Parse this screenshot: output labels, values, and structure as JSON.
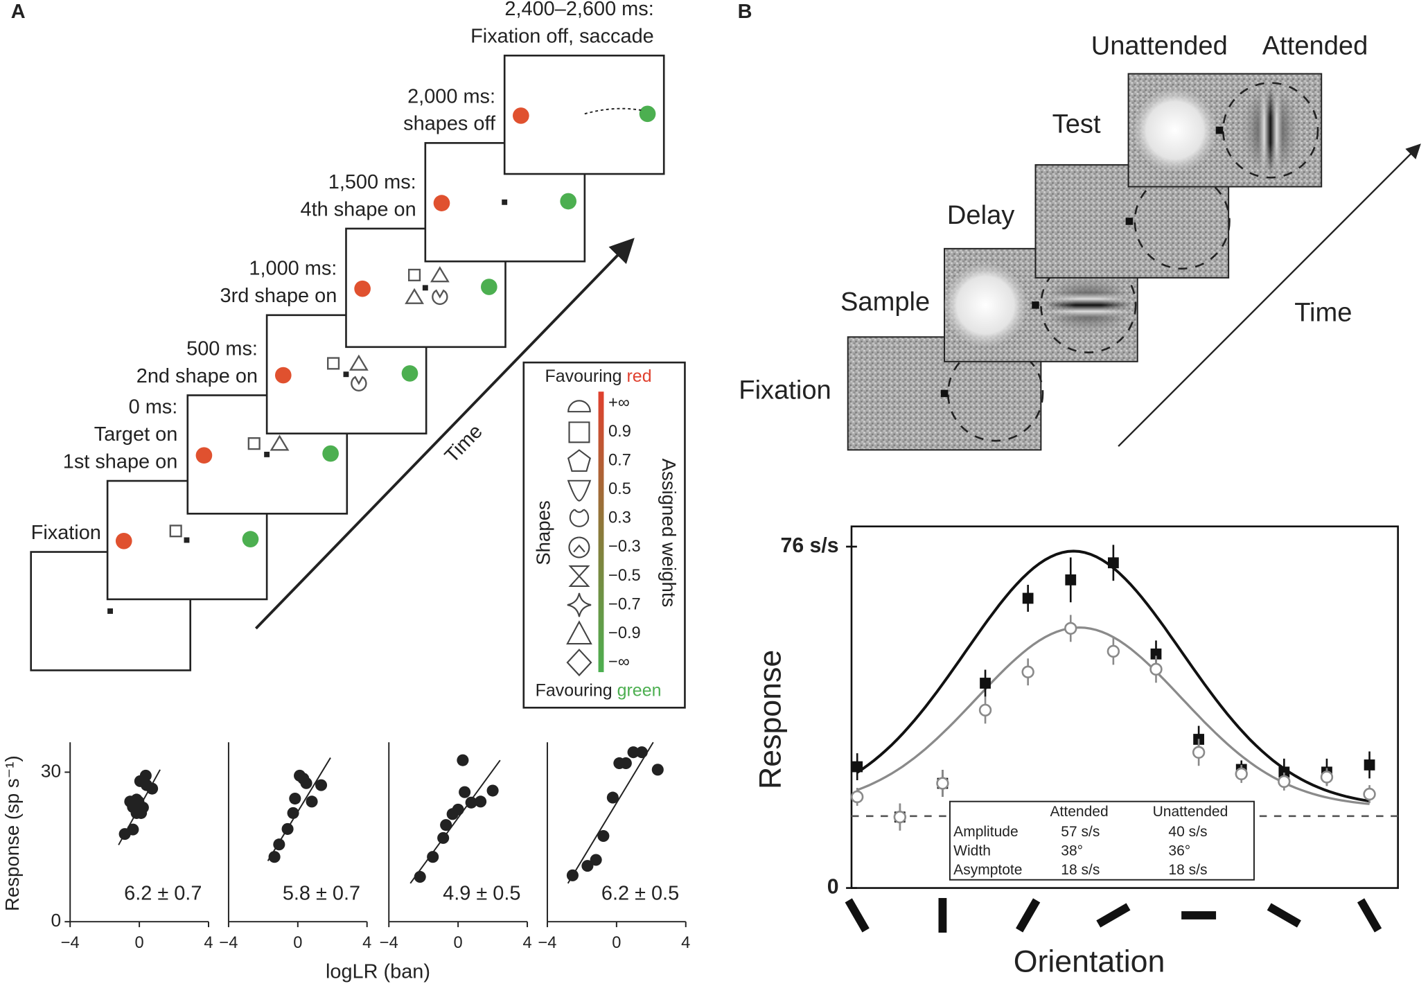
{
  "panel_a": {
    "label": "A",
    "frames": [
      {
        "label": [
          "Fixation"
        ]
      },
      {
        "label": [
          "0 ms:",
          "Target on",
          "1st shape on"
        ]
      },
      {
        "label": [
          "500 ms:",
          "2nd shape on"
        ]
      },
      {
        "label": [
          "1,000 ms:",
          "3rd shape on"
        ]
      },
      {
        "label": [
          "1,500 ms:",
          "4th shape on"
        ]
      },
      {
        "label": [
          "2,000 ms:",
          "shapes off"
        ]
      },
      {
        "label": [
          "2,400–2,600 ms:",
          "Fixation off, saccade"
        ]
      }
    ],
    "time_label": "Time",
    "legend": {
      "top_prefix": "Favouring",
      "top_word": "red",
      "bottom_prefix": "Favouring",
      "bottom_word": "green",
      "shapes_label": "Shapes",
      "weights_label": "Assigned weights",
      "weights": [
        "+∞",
        "0.9",
        "0.7",
        "0.5",
        "0.3",
        "−0.3",
        "−0.5",
        "−0.7",
        "−0.9",
        "−∞"
      ]
    },
    "scatter_xlabel": "logLR (ban)",
    "scatter_ylabel": "Response (sp s⁻¹)"
  },
  "panel_b": {
    "label": "B",
    "frames": [
      {
        "label": "Fixation"
      },
      {
        "label": "Sample"
      },
      {
        "label": "Delay"
      },
      {
        "label": "Test"
      }
    ],
    "test_labels": [
      "Unattended",
      "Attended"
    ],
    "time_label": "Time"
  },
  "chart_data": [
    {
      "type": "scatter",
      "color": "#222222",
      "x": [
        -0.84,
        -0.37,
        -0.53,
        -0.37,
        -0.16,
        -0.05,
        0.21,
        0.1,
        -0.16,
        0.42,
        0.74,
        0.37,
        0.05
      ],
      "values": [
        17.6,
        18.5,
        24.1,
        23.0,
        24.5,
        24.1,
        22.9,
        21.8,
        21.8,
        27.4,
        26.7,
        29.3,
        28.2
      ],
      "fit": {
        "x": [
          -1.2,
          1.2
        ],
        "y": [
          15.4,
          30.5
        ]
      },
      "annotation": "6.2 ± 0.7",
      "xlim": [
        -4,
        4
      ],
      "xticks": [
        {
          "value": -4,
          "label": "−4"
        },
        0,
        4
      ],
      "ylim": [
        0,
        36
      ],
      "yticks": [
        0,
        30
      ]
    },
    {
      "type": "scatter",
      "color": "#222222",
      "x": [
        -1.35,
        -1.08,
        -0.59,
        -0.27,
        -0.16,
        0.11,
        0.32,
        0.49,
        0.81,
        1.35
      ],
      "values": [
        13.0,
        15.5,
        18.6,
        21.8,
        24.7,
        29.3,
        28.7,
        27.8,
        24.1,
        27.4
      ],
      "fit": {
        "x": [
          -1.73,
          1.89
        ],
        "y": [
          12.2,
          32.9
        ]
      },
      "annotation": "5.8 ± 0.7",
      "xlim": [
        -4,
        4
      ],
      "xticks": [
        {
          "value": -4,
          "label": "−4"
        },
        0,
        4
      ],
      "ylim": [
        0,
        36
      ]
    },
    {
      "type": "scatter",
      "color": "#222222",
      "x": [
        -2.2,
        -1.46,
        -0.86,
        -0.7,
        -0.32,
        0,
        0.38,
        0.76,
        1.3,
        2.0,
        0.27
      ],
      "values": [
        9.0,
        13.0,
        16.8,
        19.4,
        21.6,
        22.5,
        26.0,
        23.9,
        24.1,
        26.3,
        32.4
      ],
      "fit": {
        "x": [
          -2.76,
          2.43
        ],
        "y": [
          7.7,
          32.4
        ]
      },
      "annotation": "4.9 ± 0.5",
      "xlim": [
        -4,
        4
      ],
      "xticks": [
        {
          "value": -4,
          "label": "−4"
        },
        0,
        4
      ],
      "ylim": [
        0,
        36
      ]
    },
    {
      "type": "scatter",
      "color": "#222222",
      "x": [
        -2.54,
        -1.68,
        -1.19,
        -0.76,
        -0.22,
        0.16,
        0.54,
        0.97,
        1.46,
        2.38
      ],
      "values": [
        9.3,
        11.2,
        12.4,
        17.2,
        24.9,
        31.8,
        31.8,
        34.0,
        34.0,
        30.5
      ],
      "fit": {
        "x": [
          -2.81,
          2.12
        ],
        "y": [
          7.7,
          36
        ]
      },
      "annotation": "6.2 ± 0.5",
      "xlim": [
        -4,
        4
      ],
      "xticks": [
        {
          "value": -4,
          "label": "−4"
        },
        0,
        4
      ],
      "ylim": [
        0,
        36
      ]
    },
    {
      "type": "line",
      "ylabel": "Response",
      "xlabel": "Orientation",
      "xlim": [
        -2,
        190
      ],
      "ylim": [
        0,
        80.5
      ],
      "yticks": [
        0,
        {
          "value": 76,
          "label": "76 s/s"
        }
      ],
      "xticks": [
        0,
        30,
        60,
        90,
        120,
        150,
        180
      ],
      "x": [
        0,
        15,
        30,
        45,
        60,
        75,
        90,
        105,
        120,
        135,
        150,
        165,
        180
      ],
      "baseline": 16,
      "series": [
        {
          "name": "Attended",
          "color": "#111111",
          "values": [
            27.0,
            15.8,
            23.3,
            45.6,
            64.5,
            68.6,
            72.4,
            52.1,
            33.1,
            26.4,
            25.8,
            25.8,
            27.4
          ],
          "errors": [
            3,
            3,
            3,
            3,
            3,
            5,
            4,
            3,
            3,
            2,
            3,
            3,
            3
          ],
          "fit": {
            "amplitude": 57,
            "width": 38,
            "asymptote": 18,
            "peak_x": 76
          }
        },
        {
          "name": "Unattended",
          "color": "#8a8a8a",
          "values": [
            20.3,
            15.8,
            23.3,
            39.6,
            48.1,
            57.8,
            52.7,
            48.7,
            30.2,
            25.4,
            23.7,
            24.7,
            20.9
          ],
          "errors": [
            2,
            3,
            3,
            3,
            3,
            3,
            3,
            3,
            3,
            2,
            2,
            2,
            2
          ],
          "fit": {
            "amplitude": 40,
            "width": 36,
            "asymptote": 18,
            "peak_x": 78
          }
        }
      ],
      "table": {
        "rows": [
          {
            "name": "Amplitude",
            "cells": [
              "57 s/s",
              "40 s/s"
            ]
          },
          {
            "name": "Width",
            "cells": [
              "38°",
              "36°"
            ]
          },
          {
            "name": "Asymptote",
            "cells": [
              "18 s/s",
              "18 s/s"
            ]
          }
        ]
      }
    }
  ]
}
